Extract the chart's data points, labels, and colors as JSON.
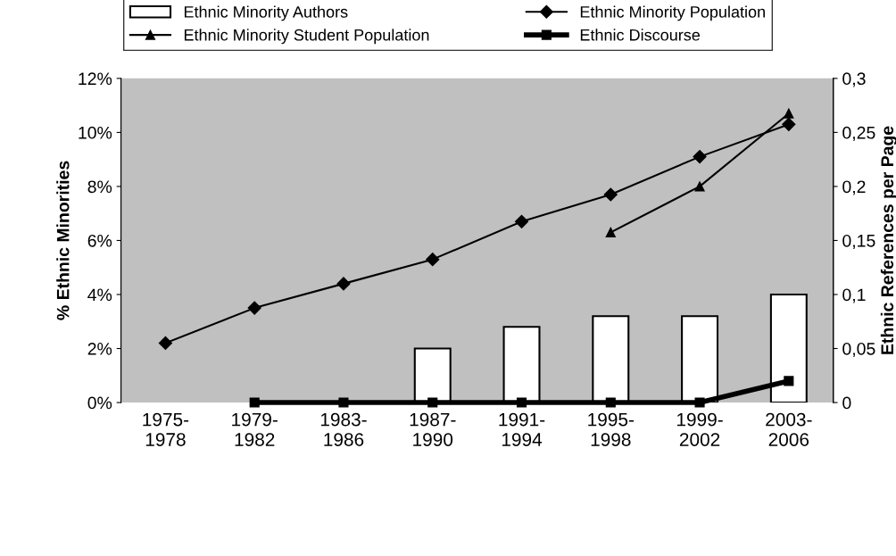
{
  "chart_data": {
    "type": "bar",
    "categories": [
      "1975-\n1978",
      "1979-\n1982",
      "1983-\n1986",
      "1987-\n1990",
      "1991-\n1994",
      "1995-\n1998",
      "1999-\n2002",
      "2003-\n2006"
    ],
    "ylabel": "% Ethnic Minorities",
    "y2label": "Ethnic References per Page",
    "ylim": [
      0,
      12
    ],
    "yticks": [
      {
        "value": 0,
        "label": "0%"
      },
      {
        "value": 2,
        "label": "2%"
      },
      {
        "value": 4,
        "label": "4%"
      },
      {
        "value": 6,
        "label": "6%"
      },
      {
        "value": 8,
        "label": "8%"
      },
      {
        "value": 10,
        "label": "10%"
      },
      {
        "value": 12,
        "label": "12%"
      }
    ],
    "y2lim": [
      0,
      0.3
    ],
    "y2ticks": [
      {
        "value": 0,
        "label": "0"
      },
      {
        "value": 0.05,
        "label": "0,05"
      },
      {
        "value": 0.1,
        "label": "0,1"
      },
      {
        "value": 0.15,
        "label": "0,15"
      },
      {
        "value": 0.2,
        "label": "0,2"
      },
      {
        "value": 0.25,
        "label": "0,25"
      },
      {
        "value": 0.3,
        "label": "0,3"
      }
    ],
    "legend": "top",
    "grid": false,
    "series": [
      {
        "name": "Ethnic Minority Authors",
        "color": "#ffffff",
        "values": [
          null,
          null,
          null,
          2.0,
          2.8,
          3.2,
          3.2,
          4.0
        ]
      },
      {
        "name": "Ethnic Minority Population",
        "type": "line",
        "marker": "diamond",
        "color": "#000000",
        "values": [
          2.2,
          3.5,
          4.4,
          5.3,
          6.7,
          7.7,
          9.1,
          10.3
        ]
      },
      {
        "name": "Ethnic Minority Student Population",
        "type": "line",
        "marker": "triangle",
        "color": "#000000",
        "values": [
          null,
          null,
          null,
          null,
          null,
          6.3,
          8.0,
          10.7
        ]
      },
      {
        "name": "Ethnic Discourse",
        "type": "line",
        "marker": "square",
        "axis": "y2",
        "color": "#000000",
        "values": [
          null,
          0,
          0,
          0,
          0,
          0,
          0,
          0.02
        ]
      }
    ]
  }
}
